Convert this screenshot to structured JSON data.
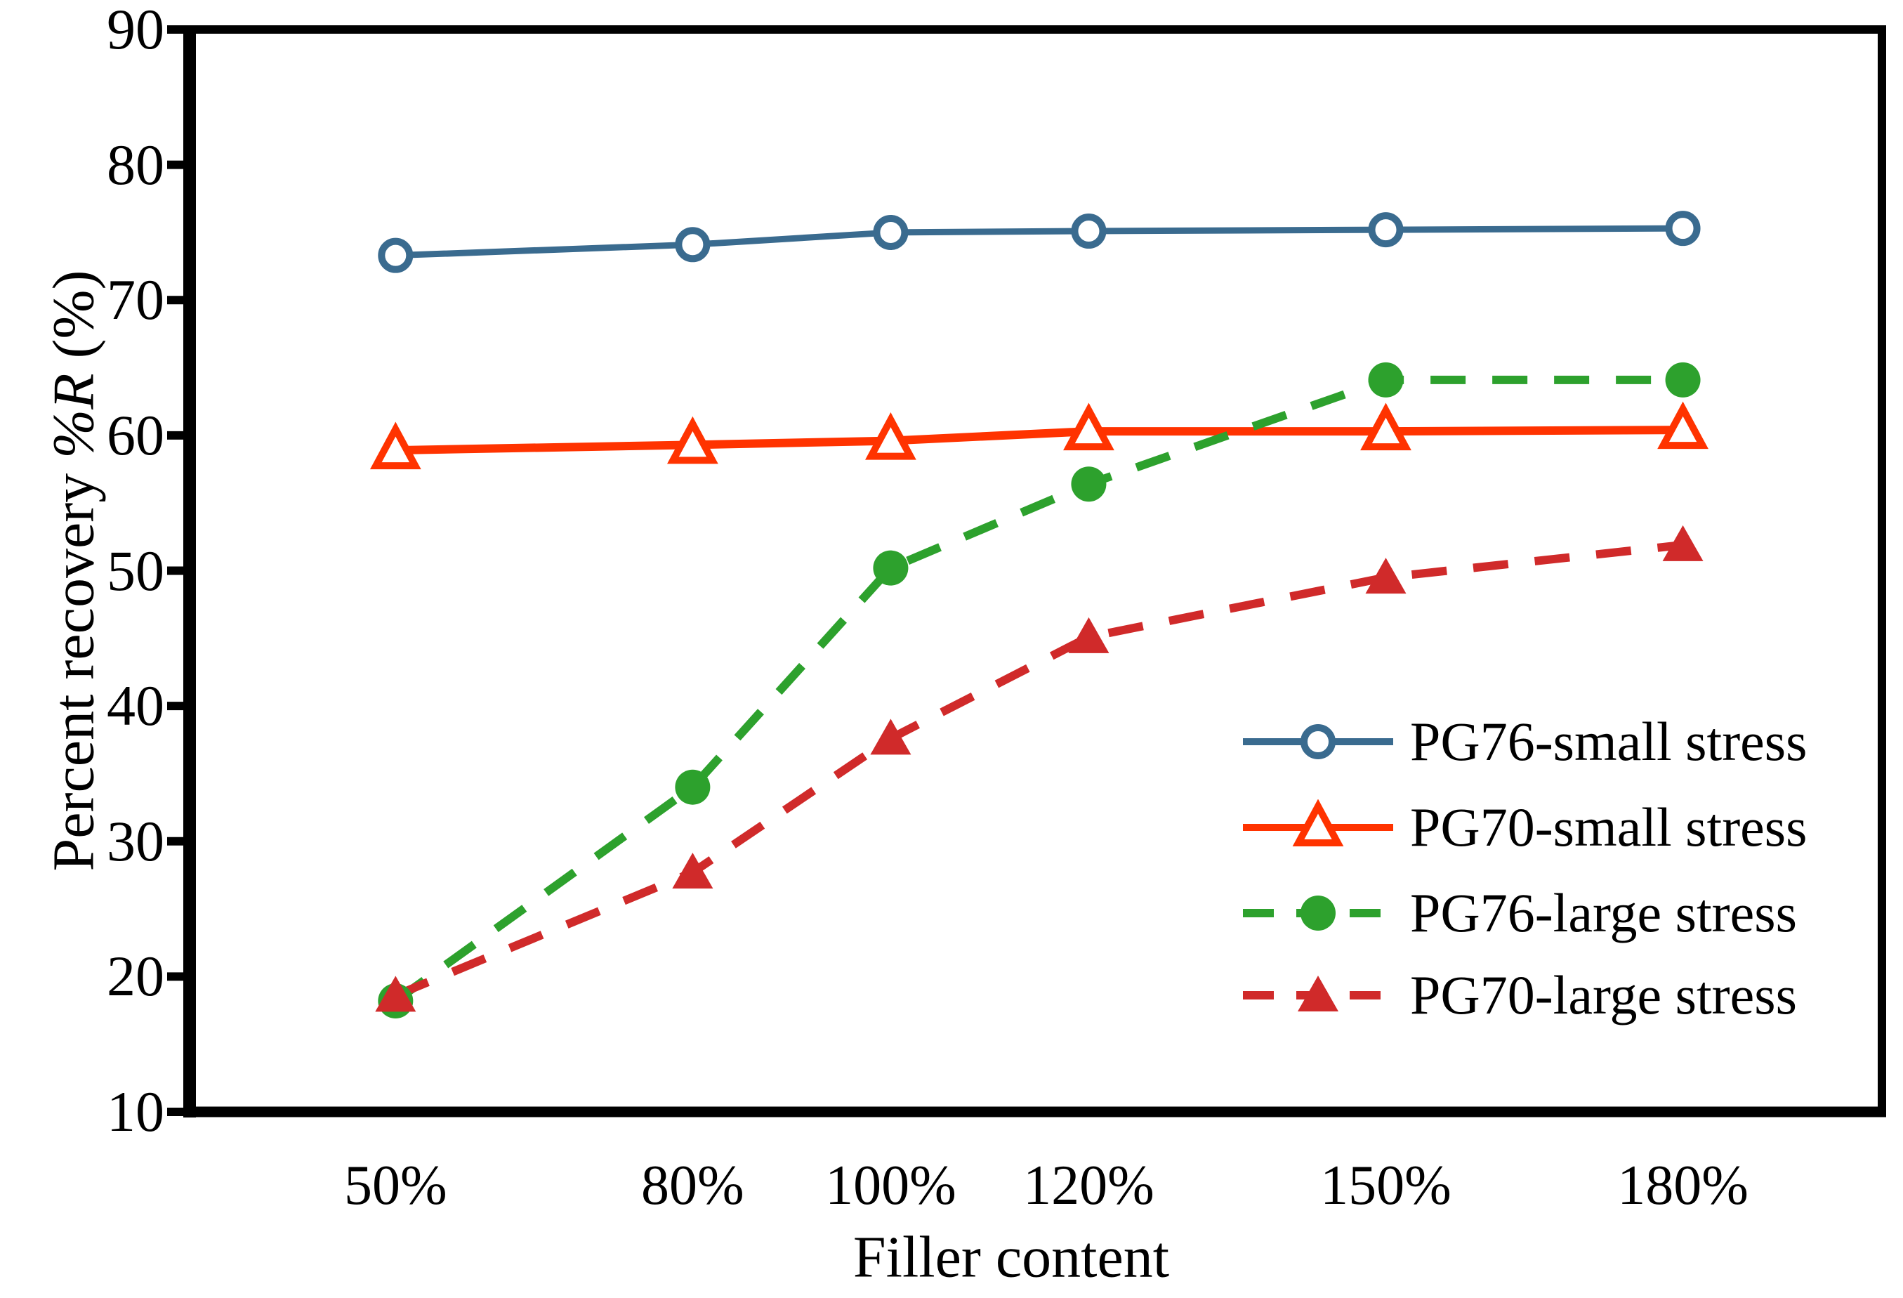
{
  "chart_data": {
    "type": "line",
    "title": "",
    "xlabel": "Filler content",
    "ylabel": "Percent recovery %R (%)",
    "ylabel_parts": [
      {
        "text": "Percent recovery ",
        "italic": false
      },
      {
        "text": "%R",
        "italic": true
      },
      {
        "text": " (%)",
        "italic": false
      }
    ],
    "x_tick_labels": [
      "50%",
      "80%",
      "100%",
      "120%",
      "150%",
      "180%"
    ],
    "x_values": [
      50,
      80,
      100,
      120,
      150,
      180
    ],
    "x_axis_range": [
      29.2,
      200.1
    ],
    "y_ticks": [
      90,
      80,
      70,
      60,
      50,
      40,
      30,
      20,
      10
    ],
    "ylim": [
      10,
      90
    ],
    "grid": false,
    "legend_position": "inside-lower-right",
    "series": [
      {
        "name": "PG76-small stress",
        "color": "#3A6B8F",
        "line_style": "solid",
        "marker": "open-circle",
        "values": [
          73.3,
          74.1,
          75.0,
          75.1,
          75.2,
          75.3
        ]
      },
      {
        "name": "PG70-small stress",
        "color": "#FF3300",
        "line_style": "solid",
        "marker": "open-triangle",
        "values": [
          58.9,
          59.3,
          59.6,
          60.3,
          60.3,
          60.4
        ]
      },
      {
        "name": "PG76-large stress",
        "color": "#2DA12D",
        "line_style": "dashed",
        "marker": "filled-circle",
        "values": [
          18.2,
          34.0,
          50.2,
          56.4,
          64.1,
          64.1
        ]
      },
      {
        "name": "PG70-large stress",
        "color": "#D02A2A",
        "line_style": "dashed",
        "marker": "filled-triangle",
        "values": [
          18.6,
          27.7,
          37.6,
          45.1,
          49.5,
          51.9
        ]
      }
    ],
    "axis_color": "#000000",
    "background_color": "#FFFFFF"
  }
}
